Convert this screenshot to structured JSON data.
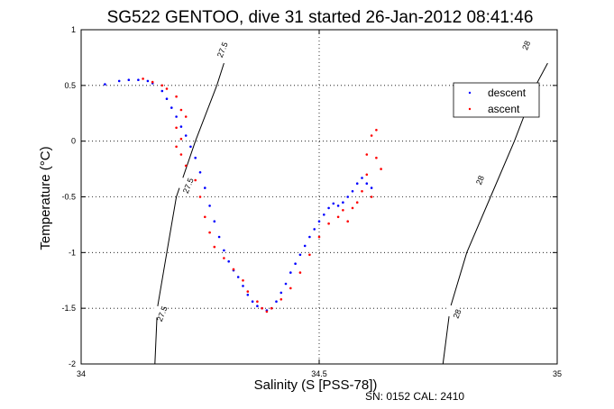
{
  "chart_data": {
    "type": "scatter",
    "title": "SG522 GENTOO, dive 31 started 26-Jan-2012 08:41:46",
    "xlabel": "Salinity (S [PSS-78])",
    "ylabel": "Temperature (°C)",
    "xlim": [
      34,
      35
    ],
    "ylim": [
      -2,
      1
    ],
    "xticks": [
      34,
      34.5,
      35
    ],
    "xtick_labels": [
      "34",
      "34.5",
      "35"
    ],
    "yticks": [
      -2,
      -1.5,
      -1,
      -0.5,
      0,
      0.5,
      1
    ],
    "ytick_labels": [
      "-2",
      "-1.5",
      "-1",
      "-0.5",
      "0",
      "0.5",
      "1"
    ],
    "grid": true,
    "legend_position": "top-right",
    "series": [
      {
        "name": "descent",
        "color": "#0000ff",
        "marker": "dot",
        "points": [
          [
            34.05,
            0.51
          ],
          [
            34.08,
            0.54
          ],
          [
            34.1,
            0.55
          ],
          [
            34.12,
            0.55
          ],
          [
            34.14,
            0.54
          ],
          [
            34.15,
            0.52
          ],
          [
            34.17,
            0.45
          ],
          [
            34.18,
            0.38
          ],
          [
            34.19,
            0.3
          ],
          [
            34.2,
            0.22
          ],
          [
            34.21,
            0.13
          ],
          [
            34.22,
            0.05
          ],
          [
            34.23,
            -0.05
          ],
          [
            34.24,
            -0.15
          ],
          [
            34.25,
            -0.28
          ],
          [
            34.26,
            -0.42
          ],
          [
            34.27,
            -0.58
          ],
          [
            34.28,
            -0.72
          ],
          [
            34.29,
            -0.86
          ],
          [
            34.3,
            -0.98
          ],
          [
            34.31,
            -1.08
          ],
          [
            34.32,
            -1.16
          ],
          [
            34.33,
            -1.22
          ],
          [
            34.34,
            -1.3
          ],
          [
            34.35,
            -1.38
          ],
          [
            34.36,
            -1.44
          ],
          [
            34.37,
            -1.48
          ],
          [
            34.38,
            -1.5
          ],
          [
            34.39,
            -1.52
          ],
          [
            34.4,
            -1.5
          ],
          [
            34.41,
            -1.44
          ],
          [
            34.42,
            -1.36
          ],
          [
            34.43,
            -1.28
          ],
          [
            34.44,
            -1.18
          ],
          [
            34.45,
            -1.1
          ],
          [
            34.46,
            -1.02
          ],
          [
            34.47,
            -0.94
          ],
          [
            34.48,
            -0.86
          ],
          [
            34.49,
            -0.79
          ],
          [
            34.5,
            -0.72
          ],
          [
            34.51,
            -0.66
          ],
          [
            34.52,
            -0.6
          ],
          [
            34.53,
            -0.56
          ],
          [
            34.54,
            -0.58
          ],
          [
            34.55,
            -0.55
          ],
          [
            34.56,
            -0.5
          ],
          [
            34.57,
            -0.45
          ],
          [
            34.58,
            -0.38
          ],
          [
            34.59,
            -0.33
          ],
          [
            34.6,
            -0.38
          ],
          [
            34.61,
            -0.42
          ]
        ]
      },
      {
        "name": "ascent",
        "color": "#ff0000",
        "marker": "dot",
        "points": [
          [
            34.13,
            0.56
          ],
          [
            34.15,
            0.53
          ],
          [
            34.17,
            0.5
          ],
          [
            34.18,
            0.47
          ],
          [
            34.2,
            0.4
          ],
          [
            34.21,
            0.28
          ],
          [
            34.22,
            0.22
          ],
          [
            34.2,
            0.12
          ],
          [
            34.21,
            0.02
          ],
          [
            34.2,
            -0.05
          ],
          [
            34.21,
            -0.12
          ],
          [
            34.22,
            -0.22
          ],
          [
            34.24,
            -0.35
          ],
          [
            34.25,
            -0.5
          ],
          [
            34.26,
            -0.68
          ],
          [
            34.27,
            -0.82
          ],
          [
            34.28,
            -0.95
          ],
          [
            34.3,
            -1.05
          ],
          [
            34.32,
            -1.15
          ],
          [
            34.34,
            -1.25
          ],
          [
            34.35,
            -1.35
          ],
          [
            34.37,
            -1.44
          ],
          [
            34.38,
            -1.5
          ],
          [
            34.39,
            -1.53
          ],
          [
            34.4,
            -1.5
          ],
          [
            34.42,
            -1.42
          ],
          [
            34.44,
            -1.32
          ],
          [
            34.46,
            -1.18
          ],
          [
            34.48,
            -1.02
          ],
          [
            34.5,
            -0.86
          ],
          [
            34.52,
            -0.74
          ],
          [
            34.54,
            -0.68
          ],
          [
            34.55,
            -0.62
          ],
          [
            34.56,
            -0.72
          ],
          [
            34.57,
            -0.6
          ],
          [
            34.58,
            -0.55
          ],
          [
            34.59,
            -0.45
          ],
          [
            34.6,
            -0.3
          ],
          [
            34.6,
            -0.12
          ],
          [
            34.61,
            0.05
          ],
          [
            34.62,
            0.1
          ],
          [
            34.62,
            -0.15
          ],
          [
            34.63,
            -0.25
          ],
          [
            34.61,
            -0.5
          ]
        ]
      }
    ],
    "contours": [
      {
        "label": "27.5",
        "color": "#000000",
        "points": [
          [
            34.155,
            -2
          ],
          [
            34.16,
            -1.5
          ],
          [
            34.18,
            -1.0
          ],
          [
            34.2,
            -0.5
          ],
          [
            34.24,
            0.0
          ],
          [
            34.285,
            0.5
          ],
          [
            34.3,
            0.7
          ]
        ],
        "label_positions": [
          [
            34.17,
            -1.55
          ],
          [
            34.225,
            -0.4
          ],
          [
            34.297,
            0.82
          ]
        ]
      },
      {
        "label": "28",
        "color": "#000000",
        "points": [
          [
            34.76,
            -2
          ],
          [
            34.775,
            -1.5
          ],
          [
            34.81,
            -1.0
          ],
          [
            34.86,
            -0.5
          ],
          [
            34.91,
            0.0
          ],
          [
            34.955,
            0.5
          ],
          [
            34.98,
            0.7
          ]
        ],
        "label_positions": [
          [
            34.79,
            -1.55
          ],
          [
            34.838,
            -0.35
          ],
          [
            34.935,
            0.86
          ]
        ]
      }
    ],
    "footer": "SN: 0152  CAL: 2410"
  }
}
